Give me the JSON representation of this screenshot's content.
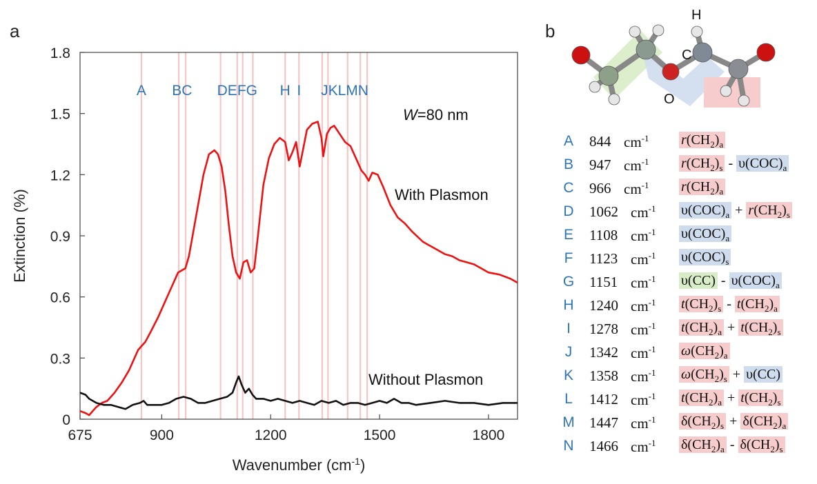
{
  "panels": {
    "a": "a",
    "b": "b"
  },
  "chart_data": {
    "type": "line",
    "xlabel": "Wavenumber (cm-1)",
    "xlabel_main": "Wavenumber (cm",
    "xlabel_sup": "-1",
    "xlabel_end": ")",
    "ylabel": "Extinction (%)",
    "xlim": [
      675,
      1880
    ],
    "ylim": [
      0,
      1.8
    ],
    "x_ticks": [
      675,
      900,
      1200,
      1500,
      1800
    ],
    "y_ticks": [
      0,
      0.3,
      0.6,
      0.9,
      1.2,
      1.5,
      1.8
    ],
    "y_tick_labels": [
      "0",
      "0.3",
      "0.6",
      "0.9",
      "1.2",
      "1.5",
      "1.8"
    ],
    "annotation": "W=80 nm",
    "annotation_italic": "W",
    "annotation_rest": "=80 nm",
    "series": [
      {
        "name": "With Plasmon",
        "color": "#ee1111",
        "x": [
          675,
          690,
          700,
          710,
          720,
          735,
          750,
          770,
          790,
          810,
          825,
          835,
          845,
          855,
          870,
          890,
          910,
          930,
          945,
          955,
          965,
          975,
          985,
          1000,
          1015,
          1030,
          1045,
          1055,
          1065,
          1075,
          1085,
          1095,
          1105,
          1115,
          1125,
          1135,
          1145,
          1155,
          1165,
          1180,
          1195,
          1210,
          1225,
          1240,
          1250,
          1260,
          1270,
          1280,
          1290,
          1300,
          1315,
          1330,
          1340,
          1345,
          1355,
          1365,
          1375,
          1390,
          1405,
          1420,
          1435,
          1450,
          1460,
          1470,
          1480,
          1495,
          1510,
          1530,
          1550,
          1570,
          1590,
          1620,
          1650,
          1680,
          1700,
          1720,
          1740,
          1760,
          1780,
          1800,
          1830,
          1860,
          1880
        ],
        "y": [
          0.04,
          0.03,
          0.02,
          0.04,
          0.06,
          0.08,
          0.09,
          0.13,
          0.18,
          0.24,
          0.3,
          0.34,
          0.36,
          0.38,
          0.43,
          0.5,
          0.58,
          0.66,
          0.72,
          0.73,
          0.74,
          0.8,
          0.9,
          1.05,
          1.2,
          1.3,
          1.32,
          1.3,
          1.24,
          1.12,
          0.95,
          0.8,
          0.72,
          0.69,
          0.77,
          0.78,
          0.72,
          0.74,
          0.9,
          1.15,
          1.28,
          1.35,
          1.38,
          1.36,
          1.27,
          1.31,
          1.36,
          1.24,
          1.33,
          1.42,
          1.45,
          1.46,
          1.38,
          1.29,
          1.4,
          1.43,
          1.44,
          1.4,
          1.36,
          1.34,
          1.28,
          1.22,
          1.2,
          1.17,
          1.21,
          1.2,
          1.14,
          1.05,
          0.99,
          0.96,
          0.92,
          0.87,
          0.84,
          0.81,
          0.8,
          0.78,
          0.77,
          0.76,
          0.74,
          0.72,
          0.71,
          0.69,
          0.67
        ]
      },
      {
        "name": "Without Plasmon",
        "color": "#111111",
        "x": [
          675,
          690,
          700,
          720,
          740,
          760,
          780,
          800,
          820,
          840,
          850,
          860,
          880,
          900,
          920,
          940,
          960,
          980,
          1000,
          1020,
          1040,
          1060,
          1080,
          1095,
          1105,
          1112,
          1120,
          1130,
          1140,
          1150,
          1160,
          1180,
          1200,
          1220,
          1240,
          1260,
          1280,
          1300,
          1320,
          1340,
          1360,
          1380,
          1400,
          1420,
          1440,
          1460,
          1480,
          1500,
          1520,
          1540,
          1560,
          1580,
          1600,
          1640,
          1680,
          1720,
          1760,
          1800,
          1840,
          1880
        ],
        "y": [
          0.13,
          0.12,
          0.1,
          0.08,
          0.07,
          0.07,
          0.06,
          0.05,
          0.07,
          0.08,
          0.09,
          0.07,
          0.07,
          0.07,
          0.08,
          0.1,
          0.11,
          0.1,
          0.08,
          0.08,
          0.09,
          0.1,
          0.11,
          0.13,
          0.18,
          0.21,
          0.17,
          0.13,
          0.15,
          0.12,
          0.1,
          0.1,
          0.09,
          0.1,
          0.09,
          0.08,
          0.09,
          0.08,
          0.07,
          0.09,
          0.08,
          0.09,
          0.07,
          0.08,
          0.08,
          0.07,
          0.08,
          0.09,
          0.08,
          0.1,
          0.08,
          0.08,
          0.07,
          0.08,
          0.09,
          0.08,
          0.08,
          0.07,
          0.08,
          0.08
        ]
      }
    ],
    "series_labels": [
      "With Plasmon",
      "Without Plasmon"
    ],
    "bands": [
      {
        "letter": "A",
        "x": 844
      },
      {
        "letter": "B",
        "x": 947
      },
      {
        "letter": "C",
        "x": 966
      },
      {
        "letter": "D",
        "x": 1062
      },
      {
        "letter": "E",
        "x": 1108
      },
      {
        "letter": "F",
        "x": 1123
      },
      {
        "letter": "G",
        "x": 1151
      },
      {
        "letter": "H",
        "x": 1240
      },
      {
        "letter": "I",
        "x": 1278
      },
      {
        "letter": "J",
        "x": 1342
      },
      {
        "letter": "K",
        "x": 1358
      },
      {
        "letter": "L",
        "x": 1412
      },
      {
        "letter": "M",
        "x": 1447
      },
      {
        "letter": "N",
        "x": 1466
      }
    ],
    "band_label_groups": [
      {
        "text": "A",
        "x": 844
      },
      {
        "text": "BC",
        "x": 956
      },
      {
        "text": "DEFG",
        "x": 1108
      },
      {
        "text": "H",
        "x": 1240
      },
      {
        "text": "I",
        "x": 1278
      },
      {
        "text": "JKLMN",
        "x": 1404
      }
    ]
  },
  "molecule": {
    "labels": [
      "H",
      "C",
      "O"
    ]
  },
  "assignments": [
    {
      "letter": "A",
      "wavenumber": "844",
      "unit": "cm",
      "unit_sup": "-1",
      "modes": [
        {
          "t": "r(CH2)a",
          "c": "pink"
        }
      ]
    },
    {
      "letter": "B",
      "wavenumber": "947",
      "unit": "cm",
      "unit_sup": "-1",
      "modes": [
        {
          "t": "r(CH2)s",
          "c": "pink"
        },
        {
          "t": " - "
        },
        {
          "t": "υ(COC)a",
          "c": "blue"
        }
      ]
    },
    {
      "letter": "C",
      "wavenumber": "966",
      "unit": "cm",
      "unit_sup": "-1",
      "modes": [
        {
          "t": "r(CH2)a",
          "c": "pink"
        }
      ]
    },
    {
      "letter": "D",
      "wavenumber": "1062",
      "unit": "cm",
      "unit_sup": "-1",
      "modes": [
        {
          "t": "υ(COC)a",
          "c": "blue"
        },
        {
          "t": " + "
        },
        {
          "t": "r(CH2)s",
          "c": "pink"
        }
      ]
    },
    {
      "letter": "E",
      "wavenumber": "1108",
      "unit": "cm",
      "unit_sup": "-1",
      "modes": [
        {
          "t": "υ(COC)a",
          "c": "blue"
        }
      ]
    },
    {
      "letter": "F",
      "wavenumber": "1123",
      "unit": "cm",
      "unit_sup": "-1",
      "modes": [
        {
          "t": "υ(COC)s",
          "c": "blue"
        }
      ]
    },
    {
      "letter": "G",
      "wavenumber": "1151",
      "unit": "cm",
      "unit_sup": "-1",
      "modes": [
        {
          "t": "υ(CC)",
          "c": "green"
        },
        {
          "t": " - "
        },
        {
          "t": "υ(COC)a",
          "c": "blue"
        }
      ]
    },
    {
      "letter": "H",
      "wavenumber": "1240",
      "unit": "cm",
      "unit_sup": "-1",
      "modes": [
        {
          "t": "t(CH2)s",
          "c": "pink"
        },
        {
          "t": " - "
        },
        {
          "t": "t(CH2)a",
          "c": "pink"
        }
      ]
    },
    {
      "letter": "I",
      "wavenumber": "1278",
      "unit": "cm",
      "unit_sup": "-1",
      "modes": [
        {
          "t": "t(CH2)a",
          "c": "pink"
        },
        {
          "t": " + "
        },
        {
          "t": "t(CH2)s",
          "c": "pink"
        }
      ]
    },
    {
      "letter": "J",
      "wavenumber": "1342",
      "unit": "cm",
      "unit_sup": "-1",
      "modes": [
        {
          "t": "ω(CH2)a",
          "c": "pink"
        }
      ]
    },
    {
      "letter": "K",
      "wavenumber": "1358",
      "unit": "cm",
      "unit_sup": "-1",
      "modes": [
        {
          "t": "ω(CH2)s",
          "c": "pink"
        },
        {
          "t": " + "
        },
        {
          "t": "υ(CC)",
          "c": "blue"
        }
      ]
    },
    {
      "letter": "L",
      "wavenumber": "1412",
      "unit": "cm",
      "unit_sup": "-1",
      "modes": [
        {
          "t": "t(CH2)a",
          "c": "pink"
        },
        {
          "t": " + "
        },
        {
          "t": "t(CH2)s",
          "c": "pink"
        }
      ]
    },
    {
      "letter": "M",
      "wavenumber": "1447",
      "unit": "cm",
      "unit_sup": "-1",
      "modes": [
        {
          "t": "δ(CH2)s",
          "c": "pink"
        },
        {
          "t": " + "
        },
        {
          "t": "δ(CH2)a",
          "c": "pink"
        }
      ]
    },
    {
      "letter": "N",
      "wavenumber": "1466",
      "unit": "cm",
      "unit_sup": "-1",
      "modes": [
        {
          "t": "δ(CH2)a",
          "c": "pink"
        },
        {
          "t": " - "
        },
        {
          "t": "δ(CH2)s",
          "c": "pink"
        }
      ]
    }
  ],
  "colors": {
    "band_line": "#f4c7c7",
    "band_label": "#2f75b5",
    "highlight_pink": "#f6cccc",
    "highlight_blue": "#cfdcee",
    "highlight_green": "#d9ecc8"
  }
}
